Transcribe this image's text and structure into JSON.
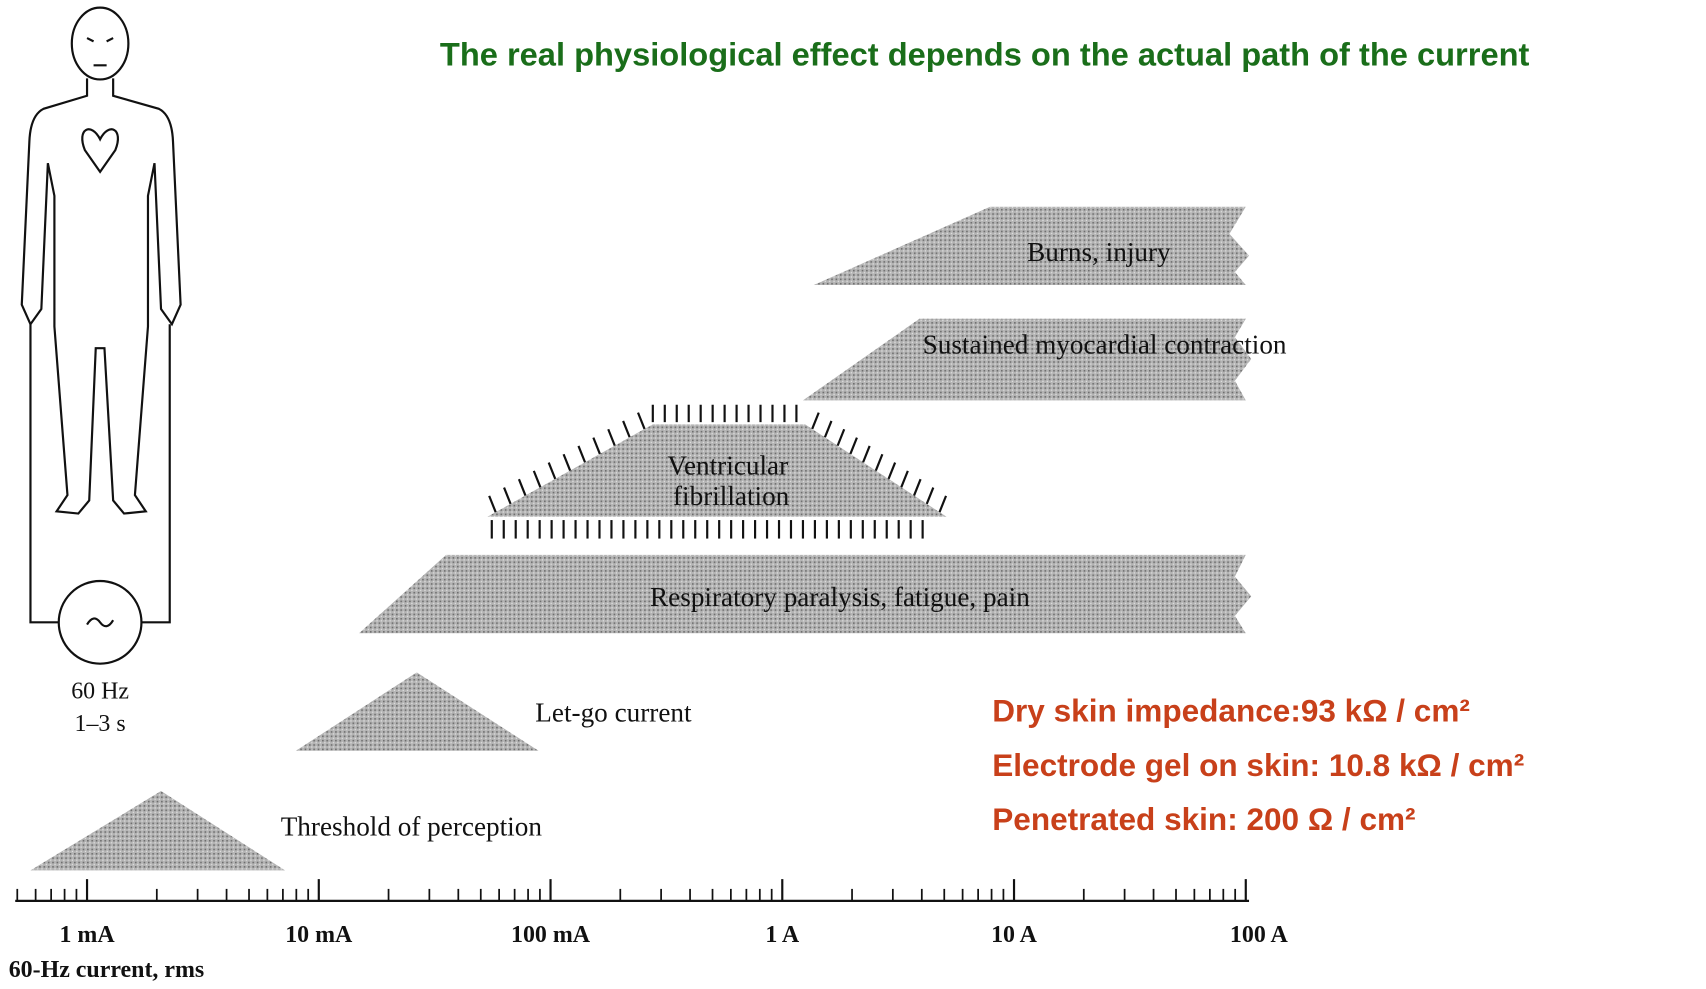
{
  "header": {
    "title": "The real physiological effect depends on the actual path of the current"
  },
  "source": {
    "frequency": "60 Hz",
    "duration": "1–3 s"
  },
  "regions": [
    "Threshold of perception",
    "Let-go current",
    "Respiratory paralysis, fatigue, pain",
    "Ventricular fibrillation",
    "Sustained myocardial contraction",
    "Burns, injury"
  ],
  "axis": {
    "labels": [
      "1 mA",
      "10 mA",
      "100 mA",
      "1 A",
      "10 A",
      "100 A"
    ],
    "title": "60-Hz current, rms"
  },
  "notes": [
    "Dry skin impedance:93 kΩ / cm²",
    "Electrode gel on skin: 10.8 kΩ / cm²",
    "Penetrated skin: 200 Ω / cm²"
  ]
}
